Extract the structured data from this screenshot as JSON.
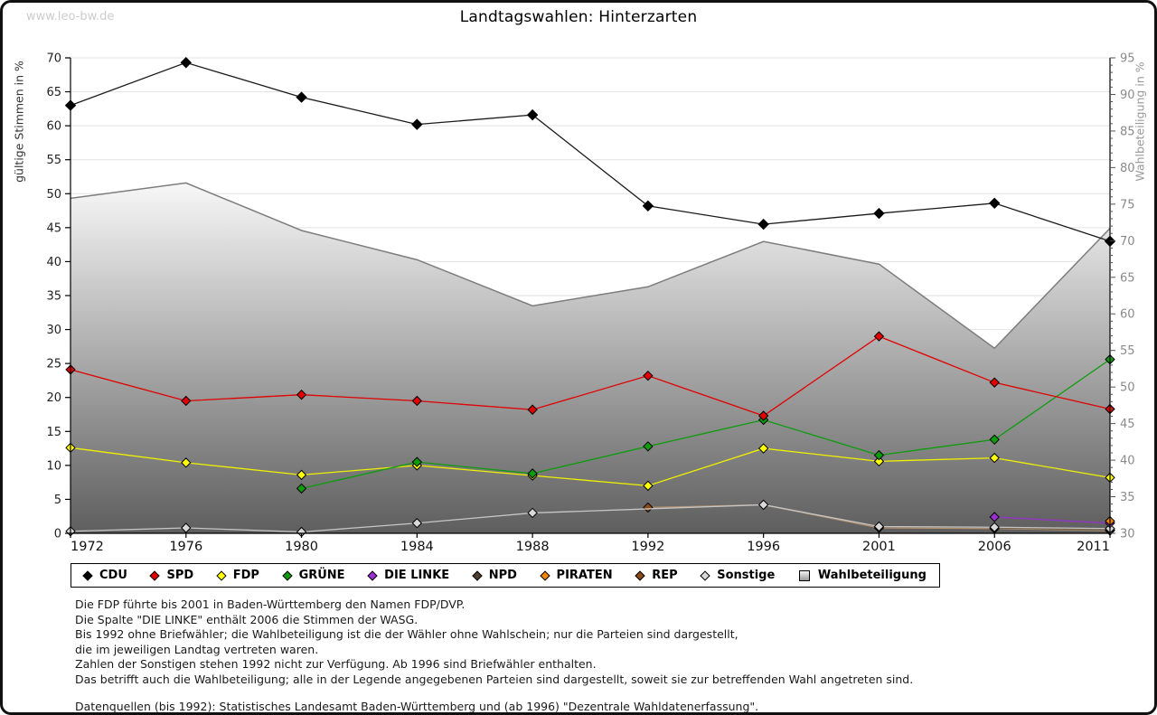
{
  "watermark": "www.leo-bw.de",
  "title": "Landtagswahlen: Hinterzarten",
  "axes": {
    "left_label": "gültige Stimmen in %",
    "right_label": "Wahlbeteiligung in %",
    "left_min": 0,
    "left_max": 70,
    "left_step": 5,
    "right_min": 30,
    "right_max": 95,
    "right_step": 5
  },
  "chart_data": {
    "type": "line",
    "title": "Landtagswahlen: Hinterzarten",
    "categories": [
      1972,
      1976,
      1980,
      1984,
      1988,
      1992,
      1996,
      2001,
      2006,
      2011
    ],
    "xlabel": "",
    "ylabel_left": "gültige Stimmen in %",
    "ylabel_right": "Wahlbeteiligung in %",
    "ylim_left": [
      0,
      70
    ],
    "ylim_right": [
      30,
      95
    ],
    "grid": true,
    "legend_position": "bottom",
    "series": [
      {
        "name": "Wahlbeteiligung",
        "kind": "area",
        "axis": "right",
        "color": "#7d7d7d",
        "values": [
          75.8,
          77.9,
          71.4,
          67.4,
          61.1,
          63.7,
          69.9,
          66.8,
          55.3,
          71.7
        ]
      },
      {
        "name": "REP",
        "kind": "line",
        "axis": "left",
        "color": "#8b4a16",
        "line_color": "#b4906c",
        "values": [
          null,
          null,
          null,
          null,
          null,
          3.8,
          4.2,
          0.8,
          0.7,
          0.4
        ]
      },
      {
        "name": "NPD",
        "kind": "line",
        "axis": "left",
        "color": "#4d4030",
        "line_color": "#6b5c48",
        "values": [
          null,
          null,
          null,
          null,
          null,
          null,
          null,
          null,
          0.8,
          0.5
        ]
      },
      {
        "name": "Sonstige",
        "kind": "line",
        "axis": "left",
        "color": "#d9d9d9",
        "line_color": "#c6c6c6",
        "values": [
          0.3,
          0.8,
          0.2,
          1.5,
          3.0,
          null,
          4.2,
          1.0,
          0.9,
          0.7
        ]
      },
      {
        "name": "DIE LINKE",
        "kind": "line",
        "axis": "left",
        "color": "#9b30d0",
        "line_color": "#9b30d0",
        "values": [
          null,
          null,
          null,
          null,
          null,
          null,
          null,
          null,
          2.4,
          1.5
        ]
      },
      {
        "name": "PIRATEN",
        "kind": "line",
        "axis": "left",
        "color": "#ef8600",
        "line_color": "#ef8600",
        "values": [
          null,
          null,
          null,
          null,
          null,
          null,
          null,
          null,
          null,
          1.8
        ]
      },
      {
        "name": "FDP",
        "kind": "line",
        "axis": "left",
        "color": "#ffff00",
        "line_color": "#f0f000",
        "values": [
          12.6,
          10.4,
          8.6,
          10.0,
          8.5,
          7.0,
          12.5,
          10.6,
          11.1,
          8.2
        ]
      },
      {
        "name": "GRÜNE",
        "kind": "line",
        "axis": "left",
        "color": "#0c9c0c",
        "line_color": "#0c9c0c",
        "values": [
          null,
          null,
          6.6,
          10.5,
          8.8,
          12.8,
          16.7,
          11.5,
          13.8,
          25.6
        ]
      },
      {
        "name": "SPD",
        "kind": "line",
        "axis": "left",
        "color": "#e10000",
        "line_color": "#e10000",
        "values": [
          24.1,
          19.5,
          20.4,
          19.5,
          18.2,
          23.2,
          17.3,
          29.0,
          22.2,
          18.3
        ]
      },
      {
        "name": "CDU",
        "kind": "line",
        "axis": "left",
        "color": "#000000",
        "line_color": "#1a1a1a",
        "values": [
          63.0,
          69.3,
          64.2,
          60.2,
          61.6,
          48.2,
          45.5,
          47.1,
          48.6,
          43.0
        ]
      }
    ]
  },
  "legend": [
    {
      "label": "CDU",
      "color": "#000000",
      "marker": "diamond"
    },
    {
      "label": "SPD",
      "color": "#e10000",
      "marker": "diamond"
    },
    {
      "label": "FDP",
      "color": "#ffff00",
      "marker": "diamond"
    },
    {
      "label": "GRÜNE",
      "color": "#0c9c0c",
      "marker": "diamond"
    },
    {
      "label": "DIE LINKE",
      "color": "#9b30d0",
      "marker": "diamond"
    },
    {
      "label": "NPD",
      "color": "#4d4030",
      "marker": "diamond"
    },
    {
      "label": "PIRATEN",
      "color": "#ef8600",
      "marker": "diamond"
    },
    {
      "label": "REP",
      "color": "#8b4a16",
      "marker": "diamond"
    },
    {
      "label": "Sonstige",
      "color": "#d9d9d9",
      "marker": "diamond"
    },
    {
      "label": "Wahlbeteiligung",
      "color": "#bfbfbf",
      "marker": "square"
    }
  ],
  "footnotes": [
    "Die FDP führte bis 2001 in Baden-Württemberg den Namen FDP/DVP.",
    "Die Spalte \"DIE LINKE\" enthält 2006 die Stimmen der WASG.",
    "Bis 1992 ohne Briefwähler; die Wahlbeteiligung ist die der Wähler ohne Wahlschein; nur die Parteien sind dargestellt,",
    "die im jeweiligen Landtag vertreten waren.",
    "Zahlen der Sonstigen stehen 1992 nicht zur Verfügung. Ab 1996 sind Briefwähler enthalten.",
    "Das betrifft auch die Wahlbeteiligung; alle in der Legende angegebenen Parteien sind dargestellt, soweit sie zur betreffenden Wahl angetreten sind."
  ],
  "source_line": "Datenquellen (bis 1992): Statistisches Landesamt Baden-Württemberg und (ab 1996) \"Dezentrale Wahldatenerfassung\"."
}
